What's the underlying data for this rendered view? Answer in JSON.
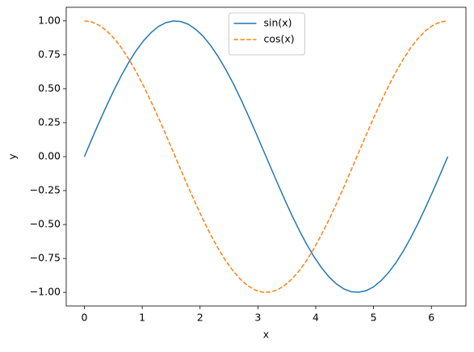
{
  "chart_data": {
    "type": "line",
    "x_label": "x",
    "y_label": "y",
    "x": [
      0,
      0.128,
      0.256,
      0.385,
      0.513,
      0.641,
      0.769,
      0.898,
      1.026,
      1.154,
      1.282,
      1.411,
      1.539,
      1.667,
      1.795,
      1.923,
      2.052,
      2.18,
      2.308,
      2.436,
      2.565,
      2.693,
      2.821,
      2.949,
      3.077,
      3.206,
      3.334,
      3.462,
      3.59,
      3.719,
      3.847,
      3.975,
      4.103,
      4.232,
      4.36,
      4.488,
      4.616,
      4.744,
      4.873,
      5.001,
      5.129,
      5.257,
      5.386,
      5.514,
      5.642,
      5.77,
      5.898,
      6.027,
      6.155,
      6.283
    ],
    "series": [
      {
        "name": "sin(x)",
        "color": "#1f77b4",
        "linestyle": "solid",
        "values": [
          0,
          0.128,
          0.254,
          0.375,
          0.491,
          0.598,
          0.696,
          0.782,
          0.855,
          0.914,
          0.959,
          0.987,
          0.999,
          0.995,
          0.975,
          0.938,
          0.887,
          0.82,
          0.74,
          0.648,
          0.546,
          0.434,
          0.315,
          0.191,
          0.064,
          -0.064,
          -0.191,
          -0.315,
          -0.434,
          -0.546,
          -0.648,
          -0.74,
          -0.82,
          -0.887,
          -0.938,
          -0.975,
          -0.995,
          -0.999,
          -0.987,
          -0.959,
          -0.914,
          -0.855,
          -0.782,
          -0.696,
          -0.598,
          -0.491,
          -0.375,
          -0.254,
          -0.128,
          0
        ]
      },
      {
        "name": "cos(x)",
        "color": "#ff7f0e",
        "linestyle": "dashed",
        "values": [
          1,
          0.992,
          0.967,
          0.927,
          0.871,
          0.801,
          0.718,
          0.623,
          0.518,
          0.405,
          0.285,
          0.16,
          0.032,
          -0.096,
          -0.223,
          -0.345,
          -0.463,
          -0.572,
          -0.672,
          -0.762,
          -0.838,
          -0.901,
          -0.949,
          -0.982,
          -0.998,
          -0.998,
          -0.982,
          -0.949,
          -0.901,
          -0.838,
          -0.762,
          -0.672,
          -0.572,
          -0.463,
          -0.345,
          -0.223,
          -0.096,
          0.032,
          0.16,
          0.285,
          0.405,
          0.518,
          0.623,
          0.718,
          0.801,
          0.871,
          0.927,
          0.967,
          0.992,
          1
        ]
      }
    ],
    "xlim": [
      -0.314,
      6.597
    ],
    "xticks": [
      0,
      1,
      2,
      3,
      4,
      5,
      6
    ],
    "ylim": [
      -1.1,
      1.1
    ],
    "yticks": [
      {
        "value": -1,
        "label": "−1.00"
      },
      {
        "value": -0.75,
        "label": "−0.75"
      },
      {
        "value": -0.5,
        "label": "−0.50"
      },
      {
        "value": -0.25,
        "label": "−0.25"
      },
      {
        "value": 0,
        "label": "0.00"
      },
      {
        "value": 0.25,
        "label": "0.25"
      },
      {
        "value": 0.5,
        "label": "0.50"
      },
      {
        "value": 0.75,
        "label": "0.75"
      },
      {
        "value": 1,
        "label": "1.00"
      }
    ],
    "grid": false,
    "legend_position": "upper center"
  }
}
